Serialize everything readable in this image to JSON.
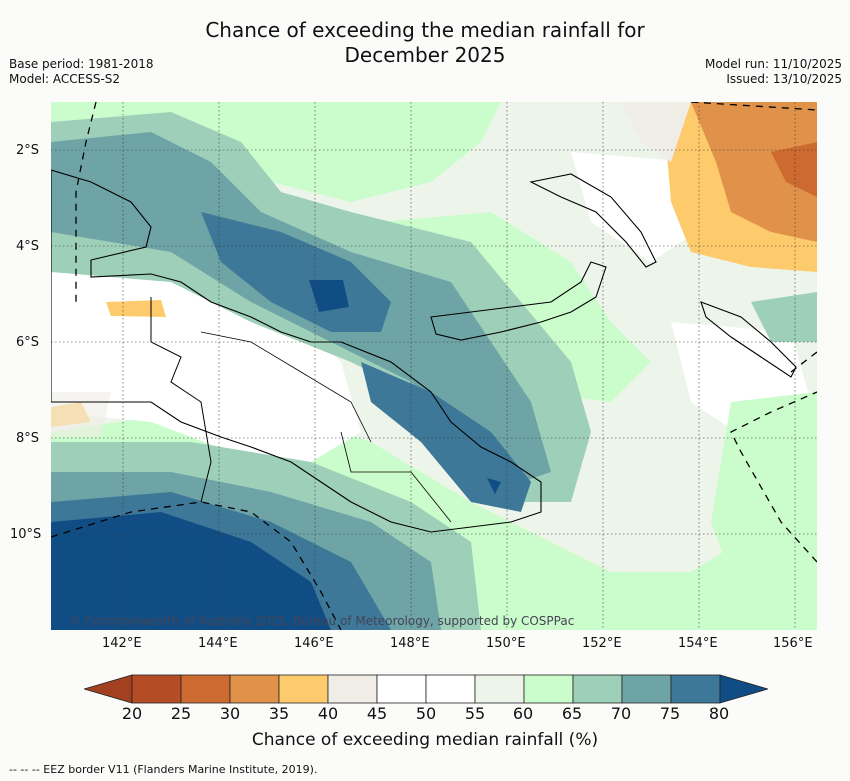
{
  "header": {
    "title_line1": "Chance of exceeding the median rainfall for",
    "title_line2": "December 2025",
    "base_period": "Base period: 1981-2018",
    "model": "Model: ACCESS-S2",
    "model_run": "Model run: 11/10/2025",
    "issued": "Issued: 13/10/2025"
  },
  "map": {
    "lat_ticks": [
      "2°S",
      "4°S",
      "6°S",
      "8°S",
      "10°S"
    ],
    "lon_ticks": [
      "142°E",
      "144°E",
      "146°E",
      "148°E",
      "150°E",
      "152°E",
      "154°E",
      "156°E"
    ],
    "copyright": "© Commonwealth of Australia 2025, Bureau of Meteorology, supported by COSPPac"
  },
  "colorbar": {
    "ticks": [
      "20",
      "25",
      "30",
      "35",
      "40",
      "45",
      "50",
      "55",
      "60",
      "65",
      "70",
      "75",
      "80"
    ],
    "colors": [
      "#a3401f",
      "#b44d25",
      "#cc6a30",
      "#e0924a",
      "#fdca6c",
      "#f0ede6",
      "#ffffff",
      "#ffffff",
      "#edf5ea",
      "#cbfccb",
      "#9ecfb8",
      "#6ea4a6",
      "#3e7898",
      "#114d85"
    ],
    "label": "Chance of exceeding median rainfall (%)"
  },
  "footer": {
    "eez_legend": "--  --  -- EEZ border V11 (Flanders Marine Institute, 2019)."
  }
}
